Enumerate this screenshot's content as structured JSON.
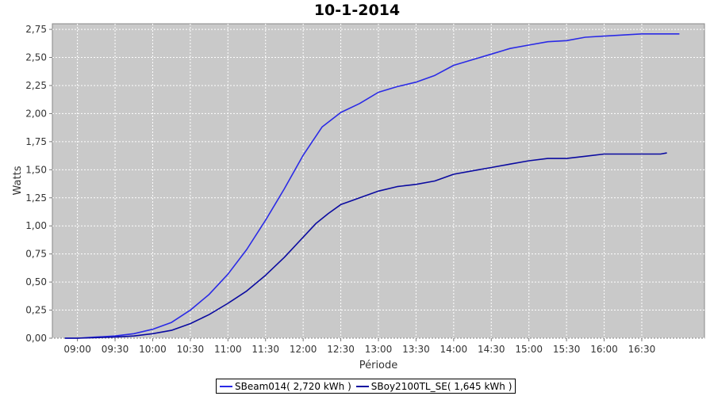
{
  "chart_data": {
    "type": "line",
    "title": "10-1-2014",
    "xlabel": "Période",
    "ylabel": "Watts",
    "xlim": [
      "08:40",
      "17:20"
    ],
    "ylim": [
      0,
      2.8
    ],
    "x_ticks": [
      "09:00",
      "09:30",
      "10:00",
      "10:30",
      "11:00",
      "11:30",
      "12:00",
      "12:30",
      "13:00",
      "13:30",
      "14:00",
      "14:30",
      "15:00",
      "15:30",
      "16:00",
      "16:30"
    ],
    "y_ticks": [
      "0,00",
      "0,25",
      "0,50",
      "0,75",
      "1,00",
      "1,25",
      "1,50",
      "1,75",
      "2,00",
      "2,25",
      "2,50",
      "2,75"
    ],
    "grid": true,
    "legend_position": "bottom",
    "series": [
      {
        "name": "SBeam014( 2,720 kWh )",
        "color": "#2a2ae6",
        "x": [
          "08:50",
          "09:00",
          "09:15",
          "09:30",
          "09:45",
          "10:00",
          "10:15",
          "10:30",
          "10:45",
          "11:00",
          "11:15",
          "11:30",
          "11:45",
          "12:00",
          "12:15",
          "12:30",
          "12:45",
          "13:00",
          "13:15",
          "13:30",
          "13:45",
          "14:00",
          "14:15",
          "14:30",
          "14:45",
          "15:00",
          "15:15",
          "15:30",
          "15:45",
          "16:00",
          "16:15",
          "16:30",
          "16:45",
          "17:00"
        ],
        "values": [
          0.0,
          0.0,
          0.01,
          0.02,
          0.04,
          0.08,
          0.14,
          0.25,
          0.39,
          0.57,
          0.79,
          1.05,
          1.33,
          1.63,
          1.88,
          2.01,
          2.09,
          2.19,
          2.24,
          2.28,
          2.34,
          2.43,
          2.48,
          2.53,
          2.58,
          2.61,
          2.64,
          2.65,
          2.68,
          2.69,
          2.7,
          2.71,
          2.71,
          2.71
        ]
      },
      {
        "name": "SBoy2100TL_SE( 1,645 kWh )",
        "color": "#0a0aa0",
        "x": [
          "08:50",
          "09:00",
          "09:15",
          "09:30",
          "09:45",
          "10:00",
          "10:15",
          "10:30",
          "10:45",
          "11:00",
          "11:15",
          "11:30",
          "11:45",
          "12:00",
          "12:10",
          "12:20",
          "12:30",
          "12:45",
          "13:00",
          "13:15",
          "13:30",
          "13:45",
          "14:00",
          "14:15",
          "14:30",
          "14:45",
          "15:00",
          "15:15",
          "15:30",
          "15:45",
          "16:00",
          "16:15",
          "16:30",
          "16:45",
          "16:50"
        ],
        "values": [
          0.0,
          0.0,
          0.005,
          0.01,
          0.02,
          0.04,
          0.07,
          0.13,
          0.21,
          0.31,
          0.42,
          0.56,
          0.72,
          0.9,
          1.02,
          1.11,
          1.19,
          1.25,
          1.31,
          1.35,
          1.37,
          1.4,
          1.46,
          1.49,
          1.52,
          1.55,
          1.58,
          1.6,
          1.6,
          1.62,
          1.64,
          1.64,
          1.64,
          1.64,
          1.65
        ]
      }
    ]
  }
}
